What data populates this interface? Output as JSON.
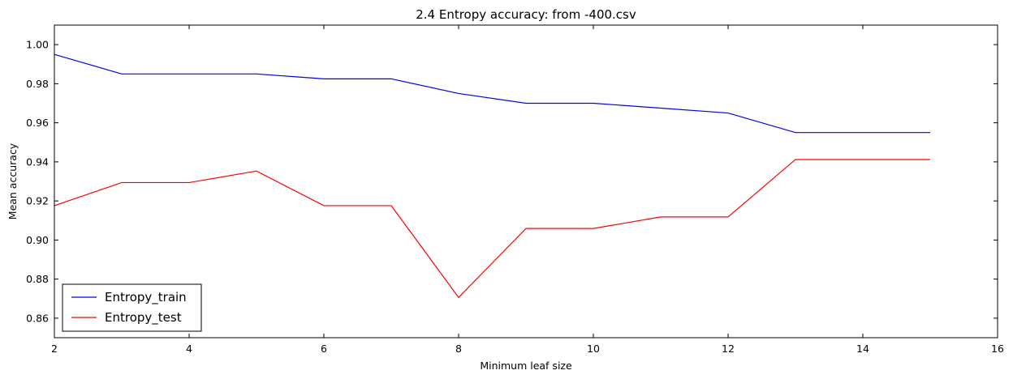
{
  "chart_data": {
    "type": "line",
    "title": "2.4 Entropy accuracy: from -400.csv",
    "xlabel": "Minimum leaf size",
    "ylabel": "Mean accuracy",
    "xlim": [
      2,
      16
    ],
    "ylim": [
      0.85,
      1.01
    ],
    "xticks": [
      2,
      4,
      6,
      8,
      10,
      12,
      14,
      16
    ],
    "yticks": [
      0.86,
      0.88,
      0.9,
      0.92,
      0.94,
      0.96,
      0.98,
      1.0
    ],
    "xtick_labels": [
      "2",
      "4",
      "6",
      "8",
      "10",
      "12",
      "14",
      "16"
    ],
    "ytick_labels": [
      "0.86",
      "0.88",
      "0.90",
      "0.92",
      "0.94",
      "0.96",
      "0.98",
      "1.00"
    ],
    "grid": false,
    "legend_position": "lower-left",
    "x": [
      2,
      3,
      4,
      5,
      6,
      7,
      8,
      9,
      10,
      11,
      12,
      13,
      14,
      15
    ],
    "series": [
      {
        "name": "Entropy_train",
        "color": "#0000ff",
        "values": [
          0.995,
          0.985,
          0.985,
          0.985,
          0.9825,
          0.9825,
          0.975,
          0.97,
          0.97,
          0.9675,
          0.965,
          0.955,
          0.955,
          0.955
        ]
      },
      {
        "name": "Entropy_test",
        "color": "#ff0000",
        "values": [
          0.9176,
          0.9294,
          0.9294,
          0.9353,
          0.9176,
          0.9176,
          0.8706,
          0.9059,
          0.9059,
          0.9118,
          0.9118,
          0.9412,
          0.9412,
          0.9412
        ]
      }
    ]
  }
}
